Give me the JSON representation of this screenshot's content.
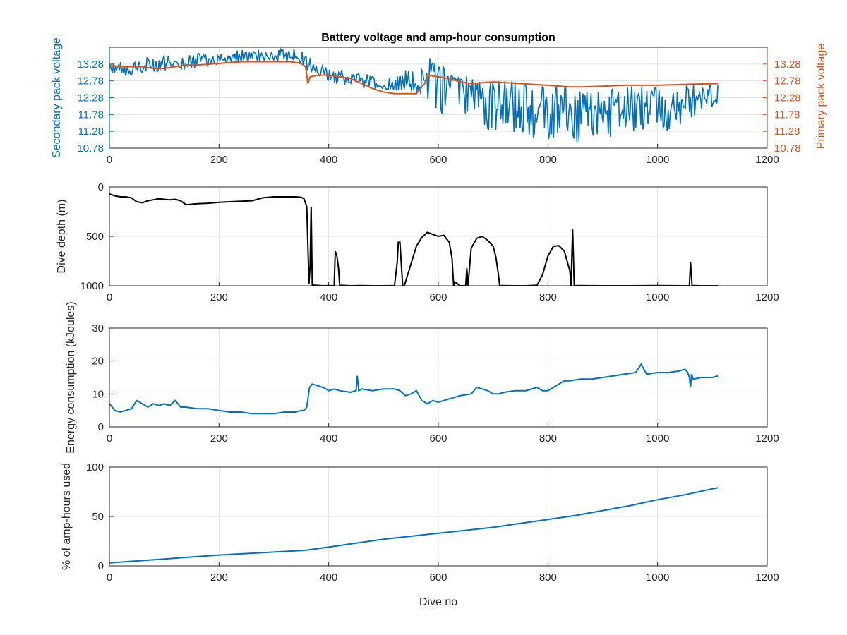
{
  "colors": {
    "blue": "#0072BD",
    "orange": "#D95319",
    "black": "#000000",
    "axis": "#262626",
    "grid": "#e3e3e3"
  },
  "chart_data": [
    {
      "type": "line",
      "title": "Battery voltage and amp-hour consumption",
      "xlabel": "",
      "ylabel": "Secondary pack voltage",
      "y2label": "Primary pack voltage",
      "xlim": [
        0,
        1200
      ],
      "ylim": [
        10.78,
        13.78
      ],
      "y2lim": [
        10.78,
        13.78
      ],
      "xticks": [
        "0",
        "200",
        "400",
        "600",
        "800",
        "1000",
        "1200"
      ],
      "yticks": [
        "10.78",
        "11.28",
        "11.78",
        "12.28",
        "12.78",
        "13.28"
      ],
      "y2ticks": [
        "10.78",
        "11.28",
        "11.78",
        "12.28",
        "12.78",
        "13.28"
      ],
      "grid": true,
      "series": [
        {
          "axis": "left",
          "color": "#0072BD",
          "x": [
            0,
            20,
            40,
            60,
            80,
            100,
            120,
            140,
            160,
            180,
            200,
            220,
            240,
            260,
            280,
            300,
            320,
            340,
            355,
            365,
            380,
            400,
            420,
            440,
            460,
            480,
            500,
            520,
            540,
            560,
            575,
            590,
            605,
            620,
            640,
            660,
            680,
            700,
            720,
            740,
            760,
            780,
            800,
            820,
            840,
            860,
            880,
            900,
            920,
            940,
            960,
            980,
            1000,
            1020,
            1040,
            1060,
            1080,
            1100,
            1110
          ],
          "y": [
            13.3,
            13.1,
            13.15,
            13.2,
            13.25,
            13.3,
            13.35,
            13.3,
            13.35,
            13.4,
            13.45,
            13.5,
            13.5,
            13.52,
            13.55,
            13.5,
            13.52,
            13.55,
            13.45,
            13.35,
            13.15,
            13.0,
            12.95,
            12.85,
            12.8,
            12.75,
            12.6,
            12.6,
            12.65,
            12.6,
            12.9,
            13.3,
            12.5,
            12.8,
            12.75,
            12.6,
            12.5,
            12.4,
            12.2,
            12.1,
            12.0,
            12.0,
            11.8,
            11.9,
            11.9,
            11.7,
            11.8,
            12.0,
            11.9,
            11.8,
            12.1,
            12.0,
            12.0,
            12.2,
            12.1,
            12.2,
            12.4,
            12.3,
            12.2
          ],
          "min": [
            13.0,
            12.9,
            12.95,
            13.0,
            13.05,
            13.05,
            13.1,
            13.15,
            13.15,
            13.2,
            13.25,
            13.3,
            13.3,
            13.35,
            13.35,
            13.3,
            13.3,
            13.35,
            13.2,
            12.95,
            12.9,
            12.75,
            12.7,
            12.6,
            12.55,
            12.5,
            12.5,
            12.45,
            12.5,
            12.4,
            12.3,
            12.0,
            11.7,
            12.0,
            11.9,
            11.6,
            11.5,
            11.2,
            11.1,
            11.2,
            11.1,
            11.1,
            11.0,
            11.0,
            10.9,
            10.85,
            11.0,
            11.1,
            11.05,
            11.0,
            11.1,
            11.2,
            11.3,
            11.2,
            11.4,
            11.5,
            11.9,
            12.0,
            12.1
          ],
          "max": [
            13.45,
            13.35,
            13.4,
            13.45,
            13.5,
            13.55,
            13.55,
            13.55,
            13.6,
            13.6,
            13.65,
            13.68,
            13.7,
            13.7,
            13.72,
            13.72,
            13.72,
            13.75,
            13.7,
            13.55,
            13.3,
            13.2,
            13.15,
            13.05,
            13.0,
            12.95,
            12.85,
            12.9,
            13.1,
            13.2,
            13.5,
            13.5,
            13.3,
            13.0,
            12.95,
            12.9,
            12.95,
            12.85,
            12.8,
            12.9,
            12.75,
            12.8,
            12.6,
            12.7,
            12.8,
            12.7,
            12.6,
            12.7,
            12.65,
            12.6,
            12.7,
            12.65,
            12.6,
            12.7,
            12.6,
            12.7,
            12.75,
            12.8,
            12.75
          ]
        },
        {
          "axis": "right",
          "color": "#D95319",
          "x": [
            0,
            20,
            40,
            60,
            80,
            100,
            120,
            140,
            160,
            200,
            240,
            280,
            300,
            330,
            350,
            358,
            362,
            366,
            380,
            400,
            420,
            440,
            460,
            480,
            500,
            520,
            540,
            560,
            575,
            580,
            600,
            620,
            640,
            660,
            700,
            750,
            800,
            840,
            860,
            900,
            940,
            1000,
            1060,
            1110
          ],
          "y": [
            13.25,
            13.2,
            13.2,
            13.2,
            13.15,
            13.15,
            13.2,
            13.25,
            13.25,
            13.3,
            13.35,
            13.35,
            13.35,
            13.35,
            13.3,
            13.2,
            12.7,
            12.9,
            12.95,
            12.95,
            12.9,
            12.85,
            12.7,
            12.55,
            12.45,
            12.4,
            12.4,
            12.4,
            12.7,
            12.95,
            12.9,
            12.85,
            12.75,
            12.7,
            12.75,
            12.7,
            12.65,
            12.6,
            12.6,
            12.62,
            12.65,
            12.65,
            12.68,
            12.7
          ]
        }
      ]
    },
    {
      "type": "line",
      "title": "",
      "xlabel": "",
      "ylabel": "Dive depth (m)",
      "xlim": [
        0,
        1200
      ],
      "ylim": [
        1000,
        0
      ],
      "reversed_y": true,
      "xticks": [
        "0",
        "200",
        "400",
        "600",
        "800",
        "1000",
        "1200"
      ],
      "yticks": [
        "0",
        "500",
        "1000"
      ],
      "grid": true,
      "series": [
        {
          "color": "#000000",
          "x": [
            0,
            10,
            20,
            30,
            40,
            50,
            60,
            70,
            80,
            90,
            100,
            110,
            120,
            130,
            140,
            150,
            160,
            180,
            200,
            220,
            240,
            260,
            280,
            300,
            320,
            340,
            350,
            355,
            360,
            362,
            364,
            366,
            368,
            370,
            375,
            390,
            400,
            410,
            412,
            415,
            418,
            420,
            440,
            460,
            480,
            500,
            520,
            525,
            527,
            530,
            535,
            538,
            560,
            570,
            580,
            590,
            600,
            610,
            620,
            625,
            628,
            630,
            640,
            650,
            652,
            654,
            656,
            660,
            670,
            680,
            690,
            700,
            705,
            710,
            712,
            715,
            740,
            760,
            780,
            790,
            800,
            810,
            820,
            830,
            840,
            842,
            845,
            848,
            850,
            855,
            900,
            950,
            1000,
            1050,
            1058,
            1060,
            1063,
            1066,
            1080,
            1110
          ],
          "y": [
            70,
            90,
            100,
            100,
            110,
            150,
            160,
            140,
            130,
            120,
            125,
            130,
            125,
            140,
            180,
            175,
            170,
            165,
            155,
            150,
            145,
            140,
            110,
            100,
            100,
            100,
            105,
            120,
            200,
            600,
            980,
            800,
            200,
            990,
            995,
            1000,
            998,
            1000,
            650,
            700,
            820,
            995,
            1000,
            998,
            1000,
            1000,
            998,
            760,
            560,
            560,
            1000,
            1000,
            600,
            510,
            460,
            480,
            500,
            490,
            560,
            720,
            1000,
            960,
            1000,
            1000,
            820,
            1000,
            880,
            620,
            520,
            500,
            540,
            600,
            710,
            900,
            1000,
            998,
            1000,
            1000,
            995,
            890,
            700,
            600,
            595,
            650,
            850,
            1000,
            430,
            1000,
            1000,
            998,
            1000,
            1000,
            998,
            1000,
            1000,
            760,
            1000,
            998,
            1000,
            1000
          ]
        }
      ]
    },
    {
      "type": "line",
      "title": "",
      "xlabel": "",
      "ylabel": "Energy consumption (kJoules)",
      "xlim": [
        0,
        1200
      ],
      "ylim": [
        0,
        30
      ],
      "xticks": [
        "0",
        "200",
        "400",
        "600",
        "800",
        "1000",
        "1200"
      ],
      "yticks": [
        "0",
        "10",
        "20",
        "30"
      ],
      "grid": true,
      "series": [
        {
          "color": "#0072BD",
          "x": [
            0,
            10,
            20,
            30,
            40,
            50,
            60,
            70,
            80,
            90,
            100,
            110,
            120,
            130,
            140,
            160,
            180,
            200,
            220,
            240,
            260,
            280,
            300,
            320,
            340,
            350,
            355,
            360,
            365,
            370,
            380,
            390,
            400,
            410,
            420,
            440,
            450,
            452,
            455,
            460,
            480,
            500,
            520,
            530,
            540,
            550,
            560,
            570,
            580,
            590,
            600,
            610,
            620,
            640,
            660,
            670,
            680,
            690,
            700,
            710,
            720,
            740,
            760,
            780,
            790,
            800,
            810,
            820,
            830,
            840,
            860,
            880,
            900,
            920,
            940,
            960,
            970,
            980,
            1000,
            1020,
            1040,
            1050,
            1055,
            1058,
            1060,
            1062,
            1065,
            1080,
            1100,
            1110
          ],
          "y": [
            7,
            5,
            4.5,
            5,
            5.5,
            8,
            7,
            6,
            7,
            6.5,
            7,
            6.5,
            8,
            6,
            6,
            5.5,
            5.5,
            5,
            4.5,
            4.5,
            4,
            4,
            4,
            4.5,
            4.5,
            5,
            5,
            6,
            12,
            13,
            12.5,
            12,
            11,
            11.5,
            11,
            10.5,
            11,
            15.5,
            11,
            11.5,
            11,
            11.5,
            11.5,
            11,
            9.5,
            10,
            11,
            8,
            7,
            8,
            7.5,
            8,
            8.5,
            9.5,
            10,
            12,
            11.5,
            11,
            10,
            10,
            10.5,
            11,
            11,
            12,
            11,
            11,
            12,
            13,
            14,
            14,
            14.5,
            14.5,
            15,
            15.5,
            16,
            16.5,
            19,
            16,
            16.5,
            16.5,
            17,
            17.5,
            16.5,
            15,
            12,
            16,
            14.5,
            15,
            15,
            15.5
          ]
        }
      ]
    },
    {
      "type": "line",
      "title": "",
      "xlabel": "Dive no",
      "ylabel": "% of amp-hours used",
      "xlim": [
        0,
        1200
      ],
      "ylim": [
        0,
        100
      ],
      "xticks": [
        "0",
        "200",
        "400",
        "600",
        "800",
        "1000",
        "1200"
      ],
      "yticks": [
        "0",
        "50",
        "100"
      ],
      "grid": true,
      "series": [
        {
          "color": "#0072BD",
          "x": [
            0,
            50,
            100,
            150,
            200,
            250,
            300,
            350,
            360,
            400,
            450,
            500,
            550,
            600,
            650,
            700,
            750,
            800,
            850,
            900,
            950,
            1000,
            1050,
            1100,
            1110
          ],
          "y": [
            3,
            5,
            7,
            9,
            11,
            12.5,
            14,
            15.5,
            16,
            19,
            23,
            27,
            30,
            33,
            36,
            39,
            43,
            47,
            51,
            56,
            61,
            67,
            72,
            78,
            79
          ]
        }
      ]
    }
  ]
}
